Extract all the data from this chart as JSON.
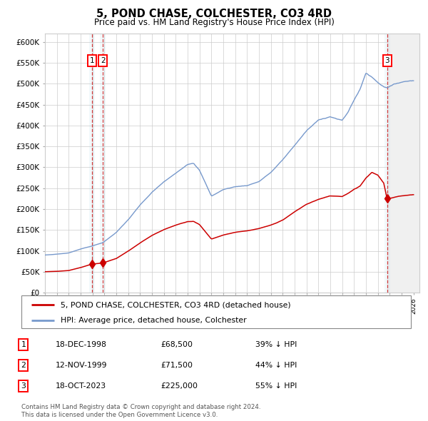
{
  "title": "5, POND CHASE, COLCHESTER, CO3 4RD",
  "subtitle": "Price paid vs. HM Land Registry's House Price Index (HPI)",
  "xlim_start": 1995.0,
  "xlim_end": 2026.5,
  "ylim": [
    0,
    620000
  ],
  "yticks": [
    0,
    50000,
    100000,
    150000,
    200000,
    250000,
    300000,
    350000,
    400000,
    450000,
    500000,
    550000,
    600000
  ],
  "ytick_labels": [
    "£0",
    "£50K",
    "£100K",
    "£150K",
    "£200K",
    "£250K",
    "£300K",
    "£350K",
    "£400K",
    "£450K",
    "£500K",
    "£550K",
    "£600K"
  ],
  "hpi_color": "#7799cc",
  "price_color": "#cc0000",
  "sale1_x": 1998.96,
  "sale1_y": 68500,
  "sale2_x": 1999.87,
  "sale2_y": 71500,
  "sale3_x": 2023.79,
  "sale3_y": 225000,
  "footer_text": "Contains HM Land Registry data © Crown copyright and database right 2024.\nThis data is licensed under the Open Government Licence v3.0.",
  "legend_line1": "5, POND CHASE, COLCHESTER, CO3 4RD (detached house)",
  "legend_line2": "HPI: Average price, detached house, Colchester",
  "table_rows": [
    [
      "1",
      "18-DEC-1998",
      "£68,500",
      "39% ↓ HPI"
    ],
    [
      "2",
      "12-NOV-1999",
      "£71,500",
      "44% ↓ HPI"
    ],
    [
      "3",
      "18-OCT-2023",
      "£225,000",
      "55% ↓ HPI"
    ]
  ],
  "background_color": "#ffffff",
  "grid_color": "#cccccc",
  "hpi_anchors_x": [
    1995,
    1996,
    1997,
    1998,
    1998.96,
    1999.87,
    2001,
    2002,
    2003,
    2004,
    2005,
    2006,
    2007,
    2007.5,
    2008,
    2009.0,
    2009.5,
    2010,
    2011,
    2012,
    2013,
    2014,
    2015,
    2016,
    2017,
    2018,
    2019,
    2020,
    2020.5,
    2021,
    2021.5,
    2022,
    2022.5,
    2023,
    2023.5,
    2023.79,
    2024,
    2024.5,
    2025,
    2026
  ],
  "hpi_anchors_y": [
    90000,
    92000,
    95000,
    105000,
    112000,
    120000,
    145000,
    175000,
    210000,
    240000,
    265000,
    285000,
    308000,
    312000,
    295000,
    232000,
    240000,
    248000,
    255000,
    258000,
    268000,
    290000,
    320000,
    355000,
    390000,
    415000,
    425000,
    415000,
    435000,
    465000,
    490000,
    530000,
    520000,
    508000,
    498000,
    497000,
    500000,
    505000,
    510000,
    515000
  ],
  "red_anchors_x": [
    1995,
    1996,
    1997,
    1998,
    1998.96,
    1999.87,
    2001,
    2002,
    2003,
    2004,
    2005,
    2006,
    2007,
    2007.5,
    2008,
    2009.0,
    2009.5,
    2010,
    2011,
    2012,
    2013,
    2014,
    2015,
    2016,
    2017,
    2018,
    2019,
    2020,
    2020.5,
    2021,
    2021.5,
    2022,
    2022.5,
    2023,
    2023.5,
    2023.79,
    2024,
    2024.5,
    2025,
    2026
  ],
  "red_anchors_y": [
    50000,
    51000,
    53000,
    60000,
    68500,
    71500,
    82000,
    100000,
    120000,
    138000,
    152000,
    163000,
    172000,
    173000,
    165000,
    130000,
    135000,
    140000,
    147000,
    150000,
    155000,
    163000,
    175000,
    195000,
    213000,
    225000,
    233000,
    232000,
    240000,
    250000,
    258000,
    278000,
    292000,
    285000,
    265000,
    225000,
    228000,
    232000,
    235000,
    238000
  ]
}
